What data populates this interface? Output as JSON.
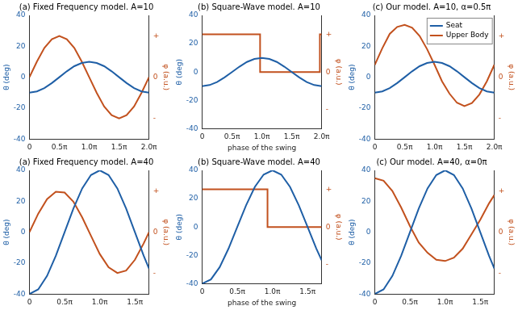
{
  "chart_data": [
    {
      "type": "line",
      "title": "(a) Fixed Frequency model. A=10",
      "ylabel": "θ (deg)",
      "y2label": "φ (a.u.)",
      "grid": false,
      "x": [
        0,
        0.125,
        0.25,
        0.375,
        0.5,
        0.625,
        0.75,
        0.875,
        1,
        1.125,
        1.25,
        1.375,
        1.5,
        1.625,
        1.75,
        1.875,
        2
      ],
      "xlim": [
        0,
        2
      ],
      "xticks": [
        0,
        {
          "value": 0.5,
          "label": "0.5π"
        },
        {
          "value": 1,
          "label": "1.0π"
        },
        {
          "value": 1.5,
          "label": "1.5π"
        },
        {
          "value": 2,
          "label": "2.0π"
        }
      ],
      "ylim": [
        -40,
        40
      ],
      "yticks": [
        -40,
        -20,
        0,
        20,
        40
      ],
      "y2lim": [
        -1.5,
        1.5
      ],
      "y2ticks": [
        {
          "value": -1,
          "label": "-"
        },
        0,
        {
          "value": 1,
          "label": "+"
        }
      ],
      "series": [
        {
          "name": "Seat",
          "color": "#1f5fa6",
          "values": [
            -10,
            -9.2,
            -7.1,
            -3.8,
            0,
            3.8,
            7.1,
            9.2,
            10,
            9.2,
            7.1,
            3.8,
            0,
            -3.8,
            -7.1,
            -9.2,
            -10
          ]
        },
        {
          "name": "Upper Body",
          "color": "#c2511e",
          "axis": "y2",
          "values": [
            0,
            0.38,
            0.71,
            0.92,
            1,
            0.92,
            0.71,
            0.38,
            0,
            -0.38,
            -0.71,
            -0.92,
            -1,
            -0.92,
            -0.71,
            -0.38,
            0
          ]
        }
      ]
    },
    {
      "type": "line",
      "title": "(b) Square-Wave model. A=10",
      "xlabel": "phase of the swing",
      "ylabel": "θ (deg)",
      "y2label": "φ (a.u.)",
      "grid": false,
      "x": [
        0,
        0.125,
        0.25,
        0.375,
        0.5,
        0.625,
        0.75,
        0.875,
        1,
        1.125,
        1.25,
        1.375,
        1.5,
        1.625,
        1.75,
        1.875,
        2
      ],
      "xlim": [
        0,
        2
      ],
      "xticks": [
        0,
        {
          "value": 0.5,
          "label": "0.5π"
        },
        {
          "value": 1,
          "label": "1.0π"
        },
        {
          "value": 1.5,
          "label": "1.5π"
        },
        {
          "value": 2,
          "label": "2.0π"
        }
      ],
      "ylim": [
        -40,
        40
      ],
      "yticks": [
        -40,
        -20,
        0,
        20,
        40
      ],
      "y2lim": [
        -1.5,
        1.5
      ],
      "y2ticks": [
        {
          "value": -1,
          "label": "-"
        },
        0,
        {
          "value": 1,
          "label": "+"
        }
      ],
      "series": [
        {
          "name": "Seat",
          "color": "#1f5fa6",
          "values": [
            -10,
            -9.2,
            -7.1,
            -3.8,
            0,
            3.8,
            7.1,
            9.2,
            10,
            9.2,
            7.1,
            3.8,
            0,
            -3.8,
            -7.1,
            -9.2,
            -10
          ]
        },
        {
          "name": "Upper Body",
          "color": "#c2511e",
          "axis": "y2",
          "x": [
            0,
            0.97,
            0.97,
            1.97,
            1.97,
            2
          ],
          "values": [
            1,
            1,
            0,
            0,
            1,
            1
          ]
        }
      ]
    },
    {
      "type": "line",
      "title": "(c) Our model. A=10, α=0.5π",
      "ylabel": "θ (deg)",
      "y2label": "φ (a.u.)",
      "grid": false,
      "legend": "upper right",
      "x": [
        0,
        0.125,
        0.25,
        0.375,
        0.5,
        0.625,
        0.75,
        0.875,
        1,
        1.125,
        1.25,
        1.375,
        1.5,
        1.625,
        1.75,
        1.875,
        2
      ],
      "xlim": [
        0,
        2
      ],
      "xticks": [
        0,
        {
          "value": 0.5,
          "label": "0.5π"
        },
        {
          "value": 1,
          "label": "1.0π"
        },
        {
          "value": 1.5,
          "label": "1.5π"
        },
        {
          "value": 2,
          "label": "2.0π"
        }
      ],
      "ylim": [
        -40,
        40
      ],
      "yticks": [
        -40,
        -20,
        0,
        20,
        40
      ],
      "y2lim": [
        -1.5,
        1.5
      ],
      "y2ticks": [
        {
          "value": -1,
          "label": "-"
        },
        0,
        {
          "value": 1,
          "label": "+"
        }
      ],
      "series": [
        {
          "name": "Seat",
          "color": "#1f5fa6",
          "values": [
            -10,
            -9.2,
            -7.1,
            -3.8,
            0,
            3.8,
            7.1,
            9.2,
            10,
            9.2,
            7.1,
            3.8,
            0,
            -3.8,
            -7.1,
            -9.2,
            -10
          ]
        },
        {
          "name": "Upper Body",
          "color": "#c2511e",
          "axis": "y2",
          "values": [
            0.3,
            0.7,
            1.05,
            1.22,
            1.27,
            1.2,
            1.0,
            0.68,
            0.3,
            -0.1,
            -0.4,
            -0.62,
            -0.7,
            -0.63,
            -0.42,
            -0.1,
            0.3
          ]
        }
      ]
    },
    {
      "type": "line",
      "title": "(a) Fixed Frequency model. A=40",
      "ylabel": "θ (deg)",
      "y2label": "φ (a.u.)",
      "grid": false,
      "x": [
        0,
        0.125,
        0.25,
        0.375,
        0.5,
        0.625,
        0.75,
        0.875,
        1,
        1.125,
        1.25,
        1.375,
        1.5,
        1.625,
        1.7
      ],
      "xlim": [
        0,
        1.7
      ],
      "xticks": [
        0,
        {
          "value": 0.5,
          "label": "0.5π"
        },
        {
          "value": 1,
          "label": "1.0π"
        },
        {
          "value": 1.5,
          "label": "1.5π"
        }
      ],
      "ylim": [
        -40,
        40
      ],
      "yticks": [
        -40,
        -20,
        0,
        20,
        40
      ],
      "y2lim": [
        -1.5,
        1.5
      ],
      "y2ticks": [
        {
          "value": -1,
          "label": "-"
        },
        0,
        {
          "value": 1,
          "label": "+"
        }
      ],
      "series": [
        {
          "name": "Seat",
          "color": "#1f5fa6",
          "values": [
            -40,
            -37,
            -28.3,
            -15.3,
            0,
            15.3,
            28.3,
            37,
            40,
            37,
            28.3,
            15.3,
            0,
            -15.3,
            -23.5
          ]
        },
        {
          "name": "Upper Body",
          "color": "#c2511e",
          "axis": "y2",
          "values": [
            0,
            0.45,
            0.8,
            0.98,
            0.96,
            0.74,
            0.36,
            -0.09,
            -0.53,
            -0.85,
            -0.99,
            -0.93,
            -0.67,
            -0.27,
            0
          ]
        }
      ]
    },
    {
      "type": "line",
      "title": "(b) Square-Wave model. A=40",
      "xlabel": "phase of the swing",
      "ylabel": "θ (deg)",
      "y2label": "φ (a.u.)",
      "grid": false,
      "x": [
        0,
        0.125,
        0.25,
        0.375,
        0.5,
        0.625,
        0.75,
        0.875,
        1,
        1.125,
        1.25,
        1.375,
        1.5,
        1.625,
        1.7
      ],
      "xlim": [
        0,
        1.7
      ],
      "xticks": [
        0,
        {
          "value": 0.5,
          "label": "0.5π"
        },
        {
          "value": 1,
          "label": "1.0π"
        },
        {
          "value": 1.5,
          "label": "1.5π"
        }
      ],
      "ylim": [
        -40,
        40
      ],
      "yticks": [
        -40,
        -20,
        0,
        20,
        40
      ],
      "y2lim": [
        -1.5,
        1.5
      ],
      "y2ticks": [
        {
          "value": -1,
          "label": "-"
        },
        0,
        {
          "value": 1,
          "label": "+"
        }
      ],
      "series": [
        {
          "name": "Seat",
          "color": "#1f5fa6",
          "values": [
            -40,
            -37,
            -28.3,
            -15.3,
            0,
            15.3,
            28.3,
            37,
            40,
            37,
            28.3,
            15.3,
            0,
            -15.3,
            -23.5
          ]
        },
        {
          "name": "Upper Body",
          "color": "#c2511e",
          "axis": "y2",
          "x": [
            0,
            0.93,
            0.93,
            1.7
          ],
          "values": [
            1,
            1,
            0,
            0
          ]
        }
      ]
    },
    {
      "type": "line",
      "title": "(c) Our model. A=40, α=0π",
      "ylabel": "θ (deg)",
      "y2label": "φ (a.u.)",
      "grid": false,
      "x": [
        0,
        0.125,
        0.25,
        0.375,
        0.5,
        0.625,
        0.75,
        0.875,
        1,
        1.125,
        1.25,
        1.375,
        1.5,
        1.625,
        1.7
      ],
      "xlim": [
        0,
        1.7
      ],
      "xticks": [
        0,
        {
          "value": 0.5,
          "label": "0.5π"
        },
        {
          "value": 1,
          "label": "1.0π"
        },
        {
          "value": 1.5,
          "label": "1.5π"
        }
      ],
      "ylim": [
        -40,
        40
      ],
      "yticks": [
        -40,
        -20,
        0,
        20,
        40
      ],
      "y2lim": [
        -1.5,
        1.5
      ],
      "y2ticks": [
        {
          "value": -1,
          "label": "-"
        },
        0,
        {
          "value": 1,
          "label": "+"
        }
      ],
      "series": [
        {
          "name": "Seat",
          "color": "#1f5fa6",
          "values": [
            -40,
            -37,
            -28.3,
            -15.3,
            0,
            15.3,
            28.3,
            37,
            40,
            37,
            28.3,
            15.3,
            0,
            -15.3,
            -23.5
          ]
        },
        {
          "name": "Upper Body",
          "color": "#c2511e",
          "axis": "y2",
          "values": [
            1.31,
            1.25,
            1.0,
            0.6,
            0.15,
            -0.25,
            -0.5,
            -0.67,
            -0.7,
            -0.62,
            -0.4,
            -0.05,
            0.3,
            0.7,
            0.9
          ]
        }
      ]
    }
  ]
}
